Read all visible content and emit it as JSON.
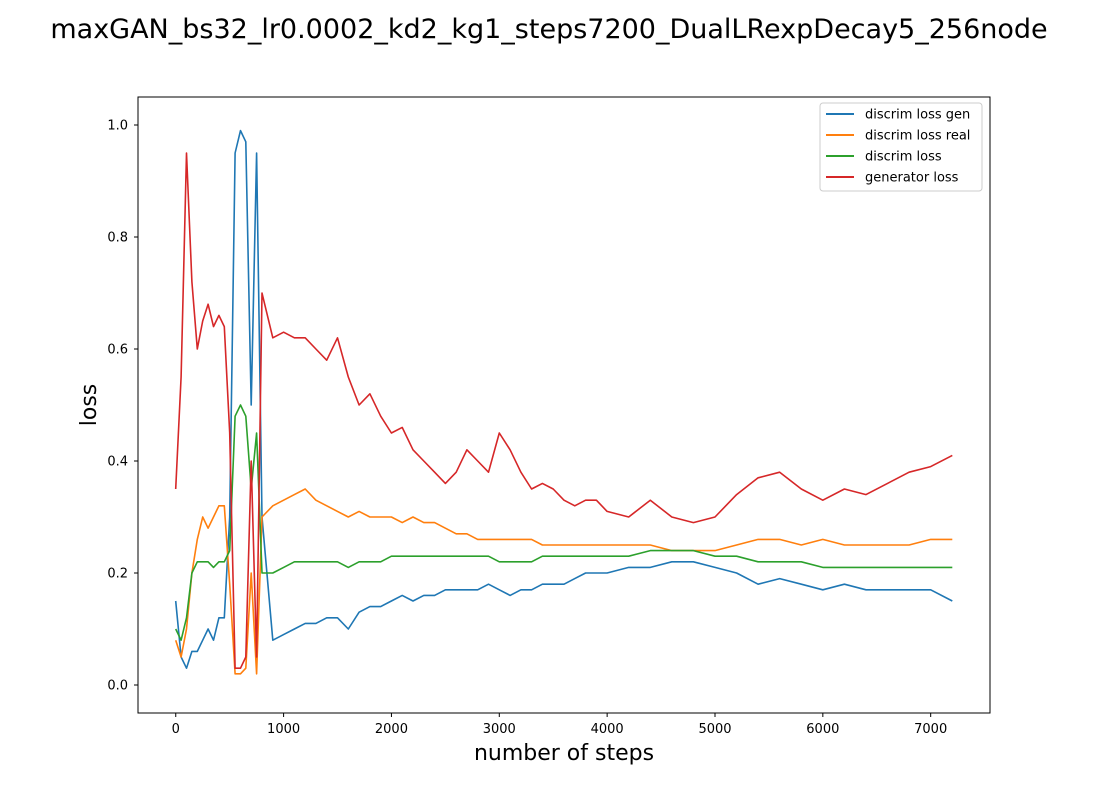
{
  "chart_data": {
    "type": "line",
    "title": "maxGAN_bs32_lr0.0002_kd2_kg1_steps7200_DualLRexpDecay5_256node",
    "xlabel": "number of steps",
    "ylabel": "loss",
    "xlim": [
      -350,
      7550
    ],
    "ylim": [
      -0.05,
      1.05
    ],
    "xticks": [
      0,
      1000,
      2000,
      3000,
      4000,
      5000,
      6000,
      7000
    ],
    "yticks": [
      0.0,
      0.2,
      0.4,
      0.6,
      0.8,
      1.0
    ],
    "grid": false,
    "legend_position": "top-right",
    "x": [
      0,
      50,
      100,
      150,
      200,
      250,
      300,
      350,
      400,
      450,
      500,
      550,
      600,
      650,
      700,
      750,
      800,
      900,
      1000,
      1100,
      1200,
      1300,
      1400,
      1500,
      1600,
      1700,
      1800,
      1900,
      2000,
      2100,
      2200,
      2300,
      2400,
      2500,
      2600,
      2700,
      2800,
      2900,
      3000,
      3100,
      3200,
      3300,
      3400,
      3500,
      3600,
      3700,
      3800,
      3900,
      4000,
      4200,
      4400,
      4600,
      4800,
      5000,
      5200,
      5400,
      5600,
      5800,
      6000,
      6200,
      6400,
      6600,
      6800,
      7000,
      7200
    ],
    "series": [
      {
        "name": "discrim loss gen",
        "color": "#1f77b4",
        "values": [
          0.15,
          0.05,
          0.03,
          0.06,
          0.06,
          0.08,
          0.1,
          0.08,
          0.12,
          0.12,
          0.3,
          0.95,
          0.99,
          0.97,
          0.5,
          0.95,
          0.3,
          0.08,
          0.09,
          0.1,
          0.11,
          0.11,
          0.12,
          0.12,
          0.1,
          0.13,
          0.14,
          0.14,
          0.15,
          0.16,
          0.15,
          0.16,
          0.16,
          0.17,
          0.17,
          0.17,
          0.17,
          0.18,
          0.17,
          0.16,
          0.17,
          0.17,
          0.18,
          0.18,
          0.18,
          0.19,
          0.2,
          0.2,
          0.2,
          0.21,
          0.21,
          0.22,
          0.22,
          0.21,
          0.2,
          0.18,
          0.19,
          0.18,
          0.17,
          0.18,
          0.17,
          0.17,
          0.17,
          0.17,
          0.15
        ]
      },
      {
        "name": "discrim loss real",
        "color": "#ff7f0e",
        "values": [
          0.08,
          0.05,
          0.1,
          0.2,
          0.26,
          0.3,
          0.28,
          0.3,
          0.32,
          0.32,
          0.18,
          0.02,
          0.02,
          0.03,
          0.2,
          0.02,
          0.3,
          0.32,
          0.33,
          0.34,
          0.35,
          0.33,
          0.32,
          0.31,
          0.3,
          0.31,
          0.3,
          0.3,
          0.3,
          0.29,
          0.3,
          0.29,
          0.29,
          0.28,
          0.27,
          0.27,
          0.26,
          0.26,
          0.26,
          0.26,
          0.26,
          0.26,
          0.25,
          0.25,
          0.25,
          0.25,
          0.25,
          0.25,
          0.25,
          0.25,
          0.25,
          0.24,
          0.24,
          0.24,
          0.25,
          0.26,
          0.26,
          0.25,
          0.26,
          0.25,
          0.25,
          0.25,
          0.25,
          0.26,
          0.26
        ]
      },
      {
        "name": "discrim loss",
        "color": "#2ca02c",
        "values": [
          0.1,
          0.08,
          0.12,
          0.2,
          0.22,
          0.22,
          0.22,
          0.21,
          0.22,
          0.22,
          0.24,
          0.48,
          0.5,
          0.48,
          0.35,
          0.45,
          0.2,
          0.2,
          0.21,
          0.22,
          0.22,
          0.22,
          0.22,
          0.22,
          0.21,
          0.22,
          0.22,
          0.22,
          0.23,
          0.23,
          0.23,
          0.23,
          0.23,
          0.23,
          0.23,
          0.23,
          0.23,
          0.23,
          0.22,
          0.22,
          0.22,
          0.22,
          0.23,
          0.23,
          0.23,
          0.23,
          0.23,
          0.23,
          0.23,
          0.23,
          0.24,
          0.24,
          0.24,
          0.23,
          0.23,
          0.22,
          0.22,
          0.22,
          0.21,
          0.21,
          0.21,
          0.21,
          0.21,
          0.21,
          0.21
        ]
      },
      {
        "name": "generator loss",
        "color": "#d62728",
        "values": [
          0.35,
          0.55,
          0.95,
          0.72,
          0.6,
          0.65,
          0.68,
          0.64,
          0.66,
          0.64,
          0.45,
          0.03,
          0.03,
          0.05,
          0.4,
          0.05,
          0.7,
          0.62,
          0.63,
          0.62,
          0.62,
          0.6,
          0.58,
          0.62,
          0.55,
          0.5,
          0.52,
          0.48,
          0.45,
          0.46,
          0.42,
          0.4,
          0.38,
          0.36,
          0.38,
          0.42,
          0.4,
          0.38,
          0.45,
          0.42,
          0.38,
          0.35,
          0.36,
          0.35,
          0.33,
          0.32,
          0.33,
          0.33,
          0.31,
          0.3,
          0.33,
          0.3,
          0.29,
          0.3,
          0.34,
          0.37,
          0.38,
          0.35,
          0.33,
          0.35,
          0.34,
          0.36,
          0.38,
          0.39,
          0.41
        ]
      }
    ]
  }
}
